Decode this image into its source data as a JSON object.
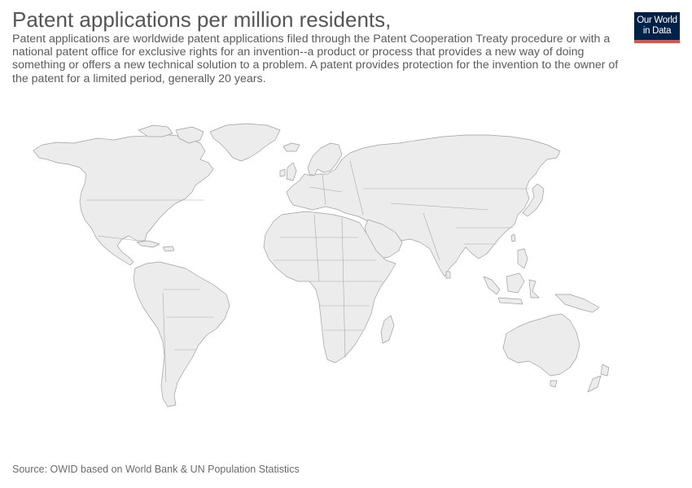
{
  "header": {
    "title": "Patent applications per million residents,",
    "subtitle": "Patent applications are worldwide patent applications filed through the Patent Cooperation Treaty procedure or with a national patent office for exclusive rights for an invention--a product or process that provides a new way of doing something or offers a new technical solution to a problem. A patent provides protection for the invention to the owner of the patent for a limited period, generally 20 years."
  },
  "logo": {
    "line1": "Our World",
    "line2": "in Data"
  },
  "map": {
    "land_color": "#ececec",
    "border_color": "#9f9f9f"
  },
  "footer": {
    "source": "Source: OWID based on World Bank & UN Population Statistics"
  }
}
